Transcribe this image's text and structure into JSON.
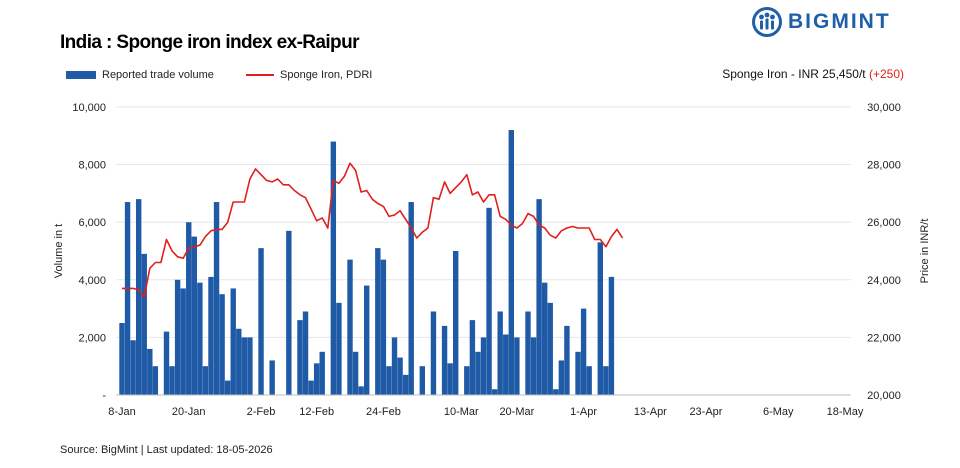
{
  "header": {
    "title": "India : Sponge iron index ex-Raipur",
    "logo_text": "BIGMINT",
    "price_note_prefix": "Sponge Iron - INR 25,450/t",
    "price_note_change": "(+250)"
  },
  "legend": {
    "volume_label": "Reported trade volume",
    "price_label": "Sponge Iron, PDRI"
  },
  "footer": {
    "source": "Source: BigMint | Last updated: 18-05-2026"
  },
  "colors": {
    "bar": "#1f5aa6",
    "line": "#e0201c",
    "logo": "#1f5fa8"
  },
  "chart_data": {
    "type": "bar",
    "ylabel_left": "Volume in t",
    "ylabel_right": "Price in INR/t",
    "ylim_left": [
      0,
      10000
    ],
    "ylim_right": [
      20000,
      30000
    ],
    "yticks_left": [
      "-",
      "2,000",
      "4,000",
      "6,000",
      "8,000",
      "10,000"
    ],
    "yticks_right": [
      "20,000",
      "22,000",
      "24,000",
      "26,000",
      "28,000",
      "30,000"
    ],
    "x_dates": [
      "8-Jan",
      "9-Jan",
      "10-Jan",
      "11-Jan",
      "12-Jan",
      "13-Jan",
      "14-Jan",
      "15-Jan",
      "16-Jan",
      "17-Jan",
      "18-Jan",
      "19-Jan",
      "20-Jan",
      "21-Jan",
      "22-Jan",
      "23-Jan",
      "24-Jan",
      "25-Jan",
      "26-Jan",
      "27-Jan",
      "28-Jan",
      "29-Jan",
      "30-Jan",
      "31-Jan",
      "1-Feb",
      "2-Feb",
      "3-Feb",
      "4-Feb",
      "5-Feb",
      "6-Feb",
      "7-Feb",
      "8-Feb",
      "9-Feb",
      "10-Feb",
      "11-Feb",
      "12-Feb",
      "13-Feb",
      "14-Feb",
      "15-Feb",
      "16-Feb",
      "17-Feb",
      "18-Feb",
      "19-Feb",
      "20-Feb",
      "21-Feb",
      "22-Feb",
      "23-Feb",
      "24-Feb",
      "25-Feb",
      "26-Feb",
      "27-Feb",
      "28-Feb",
      "1-Mar",
      "2-Mar",
      "3-Mar",
      "4-Mar",
      "5-Mar",
      "6-Mar",
      "7-Mar",
      "8-Mar",
      "9-Mar",
      "10-Mar",
      "11-Mar",
      "12-Mar",
      "13-Mar",
      "14-Mar",
      "15-Mar",
      "16-Mar",
      "17-Mar",
      "18-Mar",
      "19-Mar",
      "20-Mar",
      "21-Mar",
      "22-Mar",
      "23-Mar",
      "24-Mar",
      "25-Mar",
      "26-Mar",
      "27-Mar",
      "28-Mar",
      "29-Mar",
      "30-Mar",
      "31-Mar",
      "1-Apr",
      "2-Apr",
      "3-Apr",
      "4-Apr",
      "5-Apr",
      "6-Apr",
      "7-Apr",
      "8-Apr",
      "9-Apr",
      "10-Apr",
      "11-Apr",
      "12-Apr",
      "13-Apr",
      "14-Apr",
      "15-Apr",
      "16-Apr",
      "17-Apr",
      "18-Apr",
      "19-Apr",
      "20-Apr",
      "21-Apr",
      "22-Apr",
      "23-Apr",
      "24-Apr",
      "25-Apr",
      "26-Apr",
      "27-Apr",
      "28-Apr",
      "29-Apr",
      "30-Apr",
      "1-May",
      "2-May",
      "3-May",
      "4-May",
      "5-May",
      "6-May",
      "7-May",
      "8-May",
      "9-May",
      "10-May",
      "11-May",
      "12-May",
      "13-May",
      "14-May",
      "15-May",
      "16-May",
      "17-May",
      "18-May"
    ],
    "x_tick_labels": [
      "8-Jan",
      "20-Jan",
      "2-Feb",
      "12-Feb",
      "24-Feb",
      "10-Mar",
      "20-Mar",
      "1-Apr",
      "13-Apr",
      "23-Apr",
      "6-May",
      "18-May"
    ],
    "series": [
      {
        "name": "Reported trade volume",
        "type": "bar",
        "axis": "left",
        "points": [
          [
            "8-Jan",
            2500
          ],
          [
            "9-Jan",
            6700
          ],
          [
            "10-Jan",
            1900
          ],
          [
            "11-Jan",
            6800
          ],
          [
            "12-Jan",
            4900
          ],
          [
            "13-Jan",
            1600
          ],
          [
            "14-Jan",
            1000
          ],
          [
            "16-Jan",
            2200
          ],
          [
            "17-Jan",
            1000
          ],
          [
            "18-Jan",
            4000
          ],
          [
            "19-Jan",
            3700
          ],
          [
            "20-Jan",
            6000
          ],
          [
            "21-Jan",
            5500
          ],
          [
            "22-Jan",
            3900
          ],
          [
            "23-Jan",
            1000
          ],
          [
            "24-Jan",
            4100
          ],
          [
            "25-Jan",
            6700
          ],
          [
            "26-Jan",
            3500
          ],
          [
            "27-Jan",
            500
          ],
          [
            "28-Jan",
            3700
          ],
          [
            "29-Jan",
            2300
          ],
          [
            "30-Jan",
            2000
          ],
          [
            "31-Jan",
            2000
          ],
          [
            "2-Feb",
            5100
          ],
          [
            "4-Feb",
            1200
          ],
          [
            "7-Feb",
            5700
          ],
          [
            "9-Feb",
            2600
          ],
          [
            "10-Feb",
            2900
          ],
          [
            "11-Feb",
            500
          ],
          [
            "12-Feb",
            1100
          ],
          [
            "13-Feb",
            1500
          ],
          [
            "15-Feb",
            8800
          ],
          [
            "16-Feb",
            3200
          ],
          [
            "18-Feb",
            4700
          ],
          [
            "19-Feb",
            1500
          ],
          [
            "20-Feb",
            300
          ],
          [
            "21-Feb",
            3800
          ],
          [
            "23-Feb",
            5100
          ],
          [
            "24-Feb",
            4700
          ],
          [
            "25-Feb",
            1000
          ],
          [
            "26-Feb",
            2000
          ],
          [
            "27-Feb",
            1300
          ],
          [
            "28-Feb",
            700
          ],
          [
            "1-Mar",
            6700
          ],
          [
            "3-Mar",
            1000
          ],
          [
            "5-Mar",
            2900
          ],
          [
            "7-Mar",
            2400
          ],
          [
            "8-Mar",
            1100
          ],
          [
            "9-Mar",
            5000
          ],
          [
            "11-Mar",
            1000
          ],
          [
            "12-Mar",
            2600
          ],
          [
            "13-Mar",
            1500
          ],
          [
            "14-Mar",
            2000
          ],
          [
            "15-Mar",
            6500
          ],
          [
            "16-Mar",
            200
          ],
          [
            "17-Mar",
            2900
          ],
          [
            "18-Mar",
            2100
          ],
          [
            "19-Mar",
            9200
          ],
          [
            "20-Mar",
            2000
          ],
          [
            "22-Mar",
            2900
          ],
          [
            "23-Mar",
            2000
          ],
          [
            "24-Mar",
            6800
          ],
          [
            "25-Mar",
            3900
          ],
          [
            "26-Mar",
            3200
          ],
          [
            "27-Mar",
            200
          ],
          [
            "28-Mar",
            1200
          ],
          [
            "29-Mar",
            2400
          ],
          [
            "31-Mar",
            1500
          ],
          [
            "1-Apr",
            3000
          ],
          [
            "2-Apr",
            1000
          ],
          [
            "4-Apr",
            5300
          ],
          [
            "5-Apr",
            1000
          ],
          [
            "6-Apr",
            4100
          ]
        ]
      },
      {
        "name": "Sponge Iron, PDRI",
        "type": "line",
        "axis": "right",
        "points": [
          [
            "8-Jan",
            23700
          ],
          [
            "10-Jan",
            23700
          ],
          [
            "11-Jan",
            23650
          ],
          [
            "12-Jan",
            23400
          ],
          [
            "13-Jan",
            24400
          ],
          [
            "14-Jan",
            24600
          ],
          [
            "15-Jan",
            24600
          ],
          [
            "16-Jan",
            25400
          ],
          [
            "17-Jan",
            25000
          ],
          [
            "18-Jan",
            24800
          ],
          [
            "19-Jan",
            24750
          ],
          [
            "20-Jan",
            25100
          ],
          [
            "21-Jan",
            25150
          ],
          [
            "22-Jan",
            25200
          ],
          [
            "23-Jan",
            25500
          ],
          [
            "24-Jan",
            25700
          ],
          [
            "25-Jan",
            25750
          ],
          [
            "26-Jan",
            25750
          ],
          [
            "27-Jan",
            26000
          ],
          [
            "28-Jan",
            26700
          ],
          [
            "29-Jan",
            26700
          ],
          [
            "30-Jan",
            26700
          ],
          [
            "31-Jan",
            27500
          ],
          [
            "1-Feb",
            27850
          ],
          [
            "2-Feb",
            27650
          ],
          [
            "3-Feb",
            27450
          ],
          [
            "4-Feb",
            27400
          ],
          [
            "5-Feb",
            27500
          ],
          [
            "6-Feb",
            27300
          ],
          [
            "7-Feb",
            27300
          ],
          [
            "8-Feb",
            27100
          ],
          [
            "9-Feb",
            26950
          ],
          [
            "10-Feb",
            26850
          ],
          [
            "11-Feb",
            26450
          ],
          [
            "12-Feb",
            26050
          ],
          [
            "13-Feb",
            26150
          ],
          [
            "14-Feb",
            25800
          ],
          [
            "15-Feb",
            27450
          ],
          [
            "16-Feb",
            27350
          ],
          [
            "17-Feb",
            27600
          ],
          [
            "18-Feb",
            28050
          ],
          [
            "19-Feb",
            27800
          ],
          [
            "20-Feb",
            27050
          ],
          [
            "21-Feb",
            27100
          ],
          [
            "22-Feb",
            26800
          ],
          [
            "23-Feb",
            26650
          ],
          [
            "24-Feb",
            26550
          ],
          [
            "25-Feb",
            26200
          ],
          [
            "26-Feb",
            26250
          ],
          [
            "27-Feb",
            26400
          ],
          [
            "28-Feb",
            26100
          ],
          [
            "1-Mar",
            25800
          ],
          [
            "2-Mar",
            25450
          ],
          [
            "3-Mar",
            25650
          ],
          [
            "4-Mar",
            25800
          ],
          [
            "5-Mar",
            26850
          ],
          [
            "6-Mar",
            26800
          ],
          [
            "7-Mar",
            27400
          ],
          [
            "8-Mar",
            27000
          ],
          [
            "9-Mar",
            27200
          ],
          [
            "10-Mar",
            27400
          ],
          [
            "11-Mar",
            27650
          ],
          [
            "12-Mar",
            26950
          ],
          [
            "13-Mar",
            27050
          ],
          [
            "14-Mar",
            26700
          ],
          [
            "15-Mar",
            26950
          ],
          [
            "16-Mar",
            26950
          ],
          [
            "17-Mar",
            26200
          ],
          [
            "18-Mar",
            26100
          ],
          [
            "19-Mar",
            25900
          ],
          [
            "20-Mar",
            25800
          ],
          [
            "21-Mar",
            25950
          ],
          [
            "22-Mar",
            26300
          ],
          [
            "23-Mar",
            26200
          ],
          [
            "24-Mar",
            25900
          ],
          [
            "25-Mar",
            25800
          ],
          [
            "26-Mar",
            25550
          ],
          [
            "27-Mar",
            25450
          ],
          [
            "28-Mar",
            25700
          ],
          [
            "29-Mar",
            25800
          ],
          [
            "30-Mar",
            25850
          ],
          [
            "31-Mar",
            25800
          ],
          [
            "1-Apr",
            25800
          ],
          [
            "2-Apr",
            25800
          ],
          [
            "3-Apr",
            25400
          ],
          [
            "4-Apr",
            25400
          ],
          [
            "5-Apr",
            25150
          ],
          [
            "6-Apr",
            25500
          ],
          [
            "7-Apr",
            25750
          ],
          [
            "8-Apr",
            25450
          ]
        ]
      }
    ],
    "grid": true,
    "legend_position": "top-left"
  }
}
